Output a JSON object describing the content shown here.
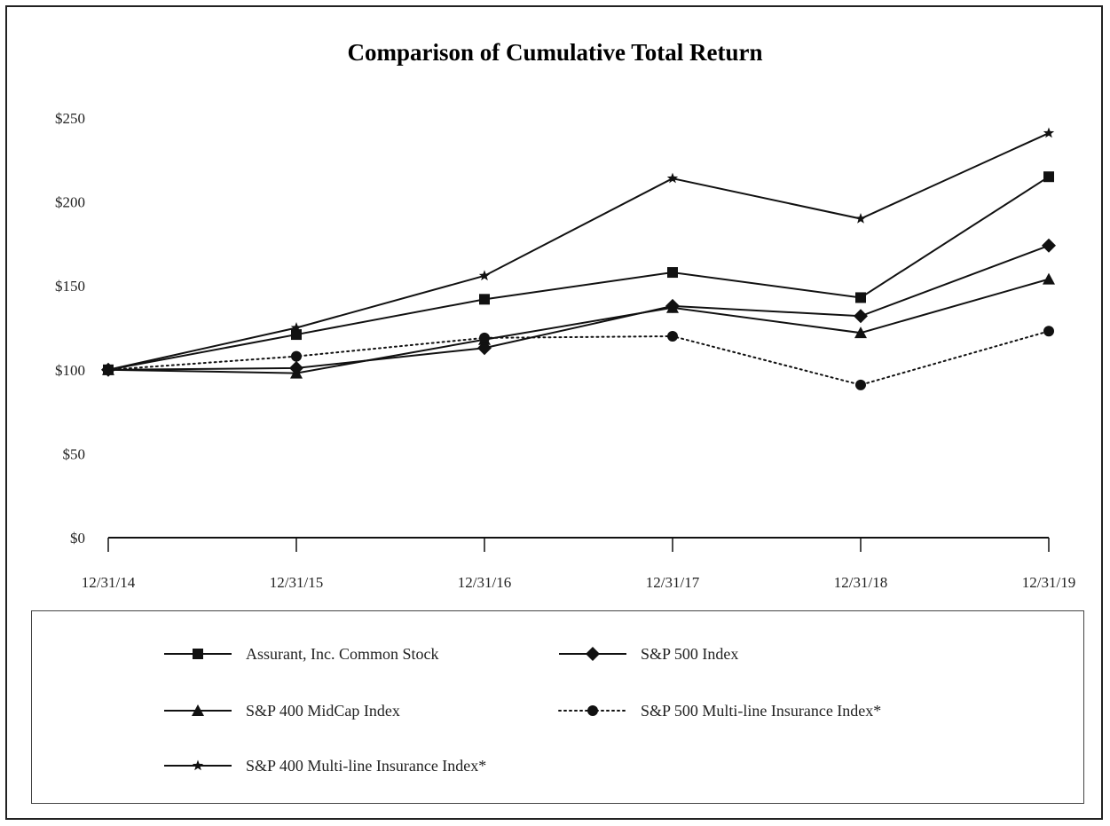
{
  "chart_data": {
    "type": "line",
    "title": "Comparison of Cumulative Total Return",
    "xlabel": "",
    "ylabel": "",
    "categories": [
      "12/31/14",
      "12/31/15",
      "12/31/16",
      "12/31/17",
      "12/31/18",
      "12/31/19"
    ],
    "ylim": [
      0,
      250
    ],
    "yticks": [
      0,
      50,
      100,
      150,
      200,
      250
    ],
    "ytick_labels": [
      "$0",
      "$50",
      "$100",
      "$150",
      "$200",
      "$250"
    ],
    "grid": false,
    "legend_position": "bottom",
    "series": [
      {
        "name": "Assurant, Inc. Common Stock",
        "marker": "square",
        "line": "solid",
        "color": "#111111",
        "values": [
          100,
          121,
          142,
          158,
          143,
          215
        ]
      },
      {
        "name": "S&P 500 Index",
        "marker": "diamond",
        "line": "solid",
        "color": "#111111",
        "values": [
          100,
          101,
          113,
          138,
          132,
          174
        ]
      },
      {
        "name": "S&P 400 MidCap Index",
        "marker": "triangle",
        "line": "solid",
        "color": "#111111",
        "values": [
          100,
          98,
          118,
          137,
          122,
          154
        ]
      },
      {
        "name": "S&P 500 Multi-line Insurance Index*",
        "marker": "circle",
        "line": "dotted",
        "color": "#111111",
        "values": [
          100,
          108,
          119,
          120,
          91,
          123
        ]
      },
      {
        "name": "S&P 400 Multi-line Insurance Index*",
        "marker": "star",
        "line": "solid",
        "color": "#111111",
        "values": [
          100,
          125,
          156,
          214,
          190,
          241
        ]
      }
    ]
  }
}
